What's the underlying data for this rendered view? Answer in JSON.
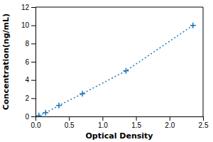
{
  "chart_data": {
    "type": "line",
    "x": [
      0.05,
      0.15,
      0.35,
      0.7,
      1.35,
      2.35
    ],
    "values": [
      0.1,
      0.4,
      1.2,
      2.5,
      5.0,
      10.0
    ],
    "xlabel": "Optical Density",
    "ylabel": "Concentration(ng/mL)",
    "xlim": [
      0,
      2.5
    ],
    "ylim": [
      0,
      12
    ],
    "xticks": [
      {
        "value": 0,
        "label": "0.0"
      },
      0.5,
      {
        "value": 1,
        "label": "1.0"
      },
      1.5,
      {
        "value": 2,
        "label": "2.0"
      },
      2.5
    ],
    "yticks": [
      0,
      2,
      4,
      6,
      8,
      10,
      12
    ],
    "marker": "plus",
    "line_style": "dotted",
    "grid": false
  }
}
